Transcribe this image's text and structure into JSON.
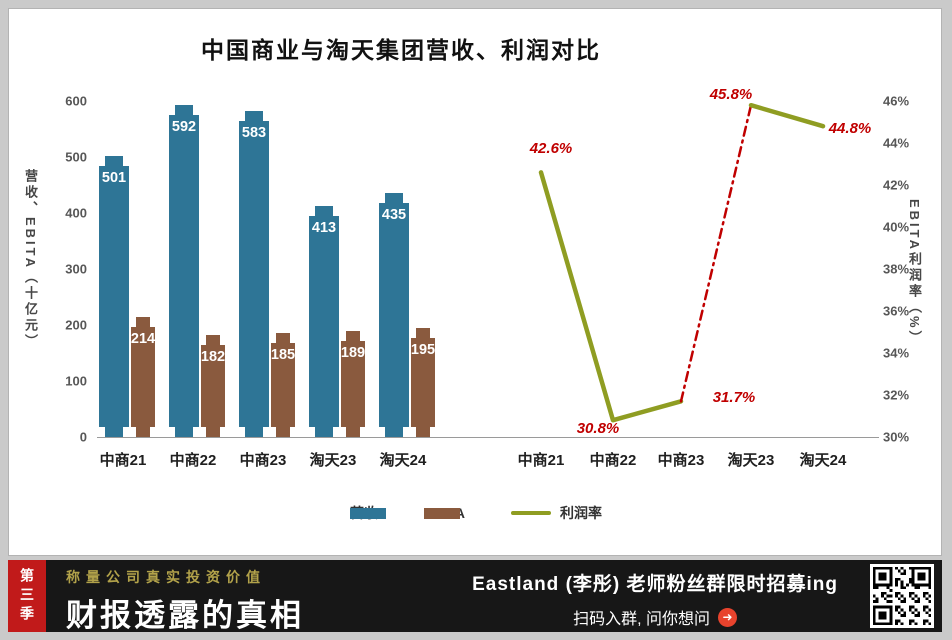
{
  "title": "中国商业与淘天集团营收、利润对比",
  "chart_data": {
    "type": "combo",
    "categories": [
      "中商21",
      "中商22",
      "中商23",
      "淘天23",
      "淘天24"
    ],
    "series": [
      {
        "name": "营收",
        "chart": "bar",
        "color": "#2e7596",
        "values": [
          501,
          592,
          583,
          413,
          435
        ]
      },
      {
        "name": "EBITA",
        "chart": "bar",
        "color": "#8a5a3e",
        "values": [
          214,
          182,
          185,
          189,
          195
        ]
      },
      {
        "name": "利润率",
        "chart": "line",
        "color": "#8f9d22",
        "values": [
          42.6,
          30.8,
          31.7,
          45.8,
          44.8
        ],
        "labels": [
          "42.6%",
          "30.8%",
          "31.7%",
          "45.8%",
          "44.8%"
        ],
        "break_segment": {
          "from": "中商23",
          "to": "淘天23",
          "style": "dash-dot",
          "color": "#c00000"
        }
      }
    ],
    "left_axis": {
      "label": "营收、EBITA（十亿元）",
      "range": [
        0,
        600
      ],
      "ticks": [
        0,
        100,
        200,
        300,
        400,
        500,
        600
      ]
    },
    "right_axis": {
      "label": "EBITA利润率（%）",
      "range": [
        30,
        46
      ],
      "ticks": [
        "30%",
        "32%",
        "34%",
        "36%",
        "38%",
        "40%",
        "42%",
        "44%",
        "46%"
      ]
    },
    "legend_position": "bottom",
    "grid": "off"
  },
  "banner": {
    "season": "第三季",
    "tagline": "称量公司真实投资价值",
    "headline": "财报透露的真相",
    "promo_line1": "Eastland (李彤) 老师粉丝群限时招募ing",
    "promo_line2": "扫码入群, 问你想问",
    "arrow_icon": "➜"
  },
  "colors": {
    "revenue_bar": "#2e7596",
    "ebita_bar": "#8a5a3e",
    "margin_line": "#8f9d22",
    "data_label_red": "#c00000",
    "banner_bg": "#171717",
    "ribbon_red": "#c11a1a",
    "tagline_olive": "#b2a24a",
    "arrow_red": "#e8432d"
  }
}
